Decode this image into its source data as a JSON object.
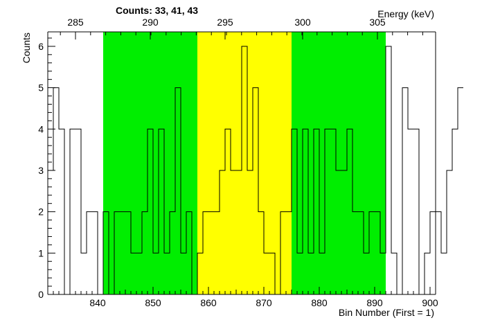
{
  "chart_data": {
    "type": "histogram",
    "title": "Counts:   33,   41,   43",
    "xlabel": "Bin Number (First = 1)",
    "ylabel": "Counts",
    "top_axis_label": "Energy (keV)",
    "xlim": [
      831,
      901
    ],
    "ylim": [
      0,
      6.35
    ],
    "x_ticks": [
      840,
      850,
      860,
      870,
      880,
      890,
      900
    ],
    "y_ticks": [
      0,
      1,
      2,
      3,
      4,
      5,
      6
    ],
    "top_ticks": [
      {
        "label": "285",
        "at_bin": 836
      },
      {
        "label": "290",
        "at_bin": 849.5
      },
      {
        "label": "295",
        "at_bin": 863
      },
      {
        "label": "300",
        "at_bin": 877
      },
      {
        "label": "305",
        "at_bin": 890.5
      }
    ],
    "regions": [
      {
        "name": "left-background",
        "from": 841,
        "to": 858,
        "color": "#00ee00"
      },
      {
        "name": "peak",
        "from": 858,
        "to": 875,
        "color": "#ffff00"
      },
      {
        "name": "right-background",
        "from": 875,
        "to": 892,
        "color": "#00ee00"
      }
    ],
    "region_counts": [
      33,
      41,
      43
    ],
    "bin_start": 831,
    "bin_width": 1,
    "values": [
      3,
      5,
      4,
      0,
      4,
      4,
      1,
      2,
      2,
      0,
      2,
      0,
      2,
      2,
      2,
      1,
      1,
      2,
      4,
      1,
      4,
      1,
      2,
      5,
      1,
      2,
      0,
      1,
      2,
      2,
      2,
      3,
      4,
      3,
      3,
      6,
      3,
      5,
      2,
      1,
      1,
      0,
      2,
      2,
      4,
      1,
      4,
      1,
      4,
      1,
      4,
      4,
      3,
      3,
      4,
      2,
      2,
      1,
      2,
      2,
      1,
      6,
      1,
      0,
      5,
      4,
      4,
      0,
      1,
      2,
      2,
      1,
      3,
      4,
      5
    ],
    "line_color": "#000000"
  }
}
